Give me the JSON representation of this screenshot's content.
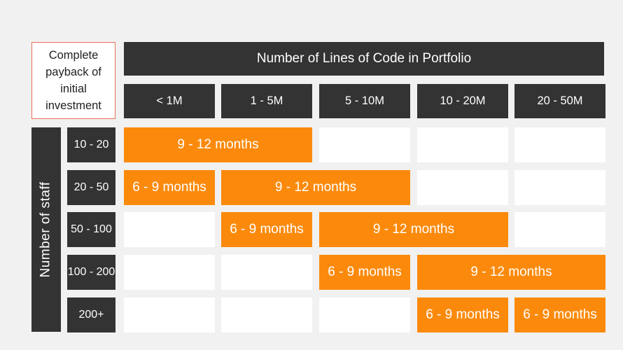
{
  "corner_label": "Complete payback of initial investment",
  "main_header": "Number of Lines of Code in Portfolio",
  "columns": [
    "< 1M",
    "1 - 5M",
    "5 - 10M",
    "10 - 20M",
    "20 - 50M"
  ],
  "side_label": "Number of staff",
  "rows": [
    {
      "label": "10 - 20"
    },
    {
      "label": "20 - 50"
    },
    {
      "label": "50 - 100"
    },
    {
      "label": "100 - 200"
    },
    {
      "label": "200+"
    }
  ],
  "payback": [
    {
      "row": 0,
      "col_start": 0,
      "span": 2,
      "text": "9 - 12 months"
    },
    {
      "row": 1,
      "col_start": 0,
      "span": 1,
      "text": "6 - 9 months"
    },
    {
      "row": 1,
      "col_start": 1,
      "span": 2,
      "text": "9 - 12 months"
    },
    {
      "row": 2,
      "col_start": 1,
      "span": 1,
      "text": "6 - 9 months"
    },
    {
      "row": 2,
      "col_start": 2,
      "span": 2,
      "text": "9 - 12 months"
    },
    {
      "row": 3,
      "col_start": 2,
      "span": 1,
      "text": "6 - 9 months"
    },
    {
      "row": 3,
      "col_start": 3,
      "span": 2,
      "text": "9 - 12 months"
    },
    {
      "row": 4,
      "col_start": 3,
      "span": 1,
      "text": "6 - 9 months"
    },
    {
      "row": 4,
      "col_start": 4,
      "span": 1,
      "text": "6 - 9 months"
    }
  ],
  "colors": {
    "header": "#333333",
    "highlight": "#fb8a0c",
    "empty": "#ffffff",
    "corner_border": "#e8705a"
  }
}
